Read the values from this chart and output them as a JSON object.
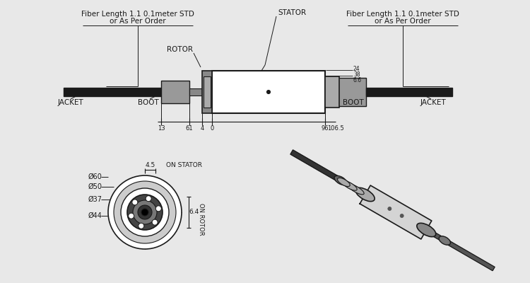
{
  "bg_color": "#e8e8e8",
  "line_color": "#1a1a1a",
  "text_color": "#1a1a1a",
  "fiber_length_text": "Fiber Length 1.1 0.1meter STD",
  "or_as_per_text": "or As Per Order",
  "stator_text": "STATOR",
  "rotor_text": "ROTOR",
  "jacket_text": "JACKET",
  "boot_text": "BOOT",
  "phi60": "Ø60",
  "phi50": "Ø50",
  "phi37": "Ø37",
  "phi44": "Ø44",
  "dim_13": "13",
  "dim_61": "61",
  "dim_4": "4",
  "dim_0": "0",
  "dim_96": "96",
  "dim_1065": "106.5",
  "on_stator": "ON STATOR",
  "on_rotor": "ON ROTOR",
  "d45": "4.5",
  "d64": "6.4",
  "d24": "24",
  "d38": "38",
  "d66": "6.6"
}
